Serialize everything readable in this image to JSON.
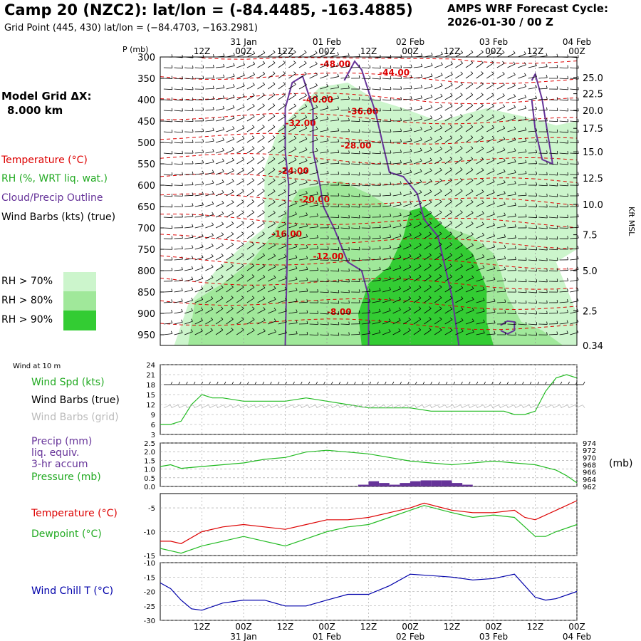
{
  "header": {
    "title": "Camp 20 (NZC2):  lat/lon = (-84.4485, -163.4885)",
    "subtitle": "Grid Point (445, 430) lat/lon = (−84.4703, −163.2981)",
    "cycle_line1": "AMPS WRF Forecast Cycle:",
    "cycle_line2": "2026-01-30 / 00  Z"
  },
  "time_axis": {
    "hour_labels": [
      "12Z",
      "00Z",
      "12Z",
      "00Z",
      "12Z",
      "00Z",
      "12Z",
      "00Z",
      "12Z",
      "00Z"
    ],
    "hour_offsets": [
      12,
      24,
      36,
      48,
      60,
      72,
      84,
      96,
      108,
      120
    ],
    "date_labels": [
      "31 Jan",
      "01 Feb",
      "02 Feb",
      "03 Feb",
      "04 Feb"
    ],
    "date_offsets": [
      24,
      48,
      72,
      96,
      120
    ],
    "range": [
      0,
      120
    ]
  },
  "colors": {
    "temperature": "#dd0000",
    "rh70": "#ccf5cc",
    "rh80": "#a0e89a",
    "rh90": "#33cc33",
    "cloud": "#663399",
    "precip": "#663399",
    "wind": "#000000",
    "wind_grid": "#bbbbbb",
    "speed": "#22bb22",
    "windchill": "#0000aa"
  },
  "legend": {
    "model_grid_label": "Model Grid ΔX:",
    "model_grid_value": "8.000 km",
    "temperature": "Temperature (°C)",
    "rh": "RH (%, WRT liq. wat.)",
    "cloud": "Cloud/Precip Outline",
    "wind": "Wind Barbs (kts) (true)",
    "rh70": "RH > 70%",
    "rh80": "RH > 80%",
    "rh90": "RH > 90%",
    "wind10m": "Wind at 10 m",
    "wind_spd": "Wind Spd (kts)",
    "wind_barbs_true": "Wind Barbs (true)",
    "wind_barbs_grid": "Wind Barbs (grid)",
    "precip_1": "Precip (mm)",
    "precip_2": "liq. equiv.",
    "precip_3": "3-hr accum",
    "pressure": "Pressure (mb)",
    "pressure_unit": "(mb)",
    "temp2": "Temperature (°C)",
    "dewpoint": "Dewpoint (°C)",
    "windchill": "Wind Chill T (°C)"
  },
  "chart_data": [
    {
      "type": "heatmap",
      "title": "Vertical cross-section: Temperature, RH, Cloud/Precip outline, Wind barbs",
      "ylabel": "P (mb)",
      "y2label": "Kft MSL",
      "ylim": [
        300,
        975
      ],
      "pressure_ticks": [
        300,
        350,
        400,
        450,
        500,
        550,
        600,
        650,
        700,
        750,
        800,
        850,
        900,
        950
      ],
      "height_ticks": [
        {
          "label": "25.0",
          "p": 348
        },
        {
          "label": "22.5",
          "p": 386
        },
        {
          "label": "20.0",
          "p": 425
        },
        {
          "label": "17.5",
          "p": 467
        },
        {
          "label": "15.0",
          "p": 522
        },
        {
          "label": "12.5",
          "p": 583
        },
        {
          "label": "10.0",
          "p": 645
        },
        {
          "label": "7.5",
          "p": 716
        },
        {
          "label": "5.0",
          "p": 800
        },
        {
          "label": "2.5",
          "p": 894
        },
        {
          "label": "0.34",
          "p": 975
        }
      ],
      "temperature_contours": [
        {
          "label": "-48.00",
          "t": 46,
          "p": 323
        },
        {
          "label": "-44.00",
          "t": 63,
          "p": 343
        },
        {
          "label": "-40.00",
          "t": 41,
          "p": 407
        },
        {
          "label": "-36.00",
          "t": 54,
          "p": 434
        },
        {
          "label": "-32.00",
          "t": 36,
          "p": 462
        },
        {
          "label": "-28.00",
          "t": 52,
          "p": 514
        },
        {
          "label": "-24.00",
          "t": 34,
          "p": 573
        },
        {
          "label": "-20.00",
          "t": 40,
          "p": 640
        },
        {
          "label": "-16.00",
          "t": 32,
          "p": 721
        },
        {
          "label": "-12.00",
          "t": 44,
          "p": 773
        },
        {
          "label": "-8.00",
          "t": 48,
          "p": 903
        }
      ],
      "rh_regions": [
        {
          "level": 70,
          "poly": [
            [
              4,
              975
            ],
            [
              8,
              880
            ],
            [
              16,
              800
            ],
            [
              24,
              740
            ],
            [
              30,
              700
            ],
            [
              30,
              560
            ],
            [
              34,
              470
            ],
            [
              40,
              420
            ],
            [
              46,
              370
            ],
            [
              54,
              360
            ],
            [
              62,
              400
            ],
            [
              70,
              420
            ],
            [
              80,
              450
            ],
            [
              94,
              420
            ],
            [
              105,
              440
            ],
            [
              114,
              460
            ],
            [
              120,
              450
            ],
            [
              120,
              750
            ],
            [
              114,
              780
            ],
            [
              118,
              860
            ],
            [
              120,
              900
            ],
            [
              120,
              975
            ]
          ]
        },
        {
          "level": 80,
          "poly": [
            [
              8,
              975
            ],
            [
              10,
              870
            ],
            [
              18,
              830
            ],
            [
              26,
              780
            ],
            [
              32,
              720
            ],
            [
              40,
              610
            ],
            [
              46,
              600
            ],
            [
              52,
              590
            ],
            [
              60,
              620
            ],
            [
              66,
              650
            ],
            [
              72,
              660
            ],
            [
              80,
              690
            ],
            [
              90,
              720
            ],
            [
              96,
              760
            ],
            [
              98,
              800
            ],
            [
              100,
              860
            ],
            [
              104,
              920
            ],
            [
              110,
              940
            ],
            [
              116,
              975
            ]
          ]
        },
        {
          "level": 90,
          "poly": [
            [
              58,
              975
            ],
            [
              57,
              900
            ],
            [
              60,
              830
            ],
            [
              66,
              790
            ],
            [
              70,
              720
            ],
            [
              72,
              660
            ],
            [
              76,
              650
            ],
            [
              82,
              700
            ],
            [
              90,
              760
            ],
            [
              94,
              840
            ],
            [
              94,
              920
            ],
            [
              96,
              975
            ]
          ]
        }
      ],
      "cloud_outlines": [
        [
          [
            36,
            975
          ],
          [
            37,
            600
          ],
          [
            36,
            520
          ],
          [
            36,
            420
          ],
          [
            38,
            360
          ],
          [
            41,
            345
          ],
          [
            44,
            420
          ],
          [
            44,
            520
          ],
          [
            46,
            600
          ],
          [
            47,
            650
          ],
          [
            50,
            700
          ],
          [
            54,
            780
          ],
          [
            58,
            800
          ],
          [
            60,
            860
          ],
          [
            60,
            975
          ]
        ],
        [
          [
            53,
            355
          ],
          [
            56,
            310
          ],
          [
            58,
            330
          ],
          [
            60,
            380
          ],
          [
            62,
            430
          ],
          [
            64,
            500
          ],
          [
            66,
            570
          ],
          [
            70,
            580
          ],
          [
            74,
            620
          ],
          [
            76,
            680
          ],
          [
            80,
            720
          ],
          [
            84,
            860
          ],
          [
            86,
            975
          ]
        ],
        [
          [
            107,
            355
          ],
          [
            108,
            340
          ],
          [
            110,
            400
          ],
          [
            112,
            500
          ],
          [
            113,
            550
          ],
          [
            110,
            540
          ],
          [
            108,
            470
          ],
          [
            107,
            400
          ]
        ],
        [
          [
            98,
            928
          ],
          [
            100,
            918
          ],
          [
            102,
            920
          ],
          [
            102,
            940
          ],
          [
            100,
            948
          ],
          [
            98,
            940
          ]
        ]
      ]
    },
    {
      "type": "line",
      "title": "Wind at 10 m",
      "series": [
        {
          "name": "Wind Spd (kts)",
          "unit": "kts",
          "x": [
            0,
            3,
            6,
            9,
            12,
            15,
            18,
            24,
            30,
            36,
            42,
            48,
            54,
            60,
            66,
            72,
            78,
            84,
            90,
            96,
            99,
            102,
            105,
            108,
            111,
            114,
            117,
            120
          ],
          "values": [
            6,
            6,
            7,
            12,
            15,
            14,
            14,
            13,
            13,
            13,
            14,
            13,
            12,
            11,
            11,
            11,
            10,
            10,
            10,
            10,
            10,
            9,
            9,
            10,
            16,
            20,
            21,
            20
          ]
        }
      ],
      "ylim": [
        3,
        24
      ],
      "yticks": [
        3,
        6,
        9,
        12,
        15,
        18,
        21,
        24
      ]
    },
    {
      "type": "bar",
      "title": "Precip (mm) liq. equiv. 3-hr accum",
      "x": [
        57,
        60,
        63,
        66,
        69,
        72,
        75,
        78,
        81,
        84,
        87
      ],
      "values": [
        0.1,
        0.3,
        0.2,
        0.1,
        0.2,
        0.3,
        0.35,
        0.35,
        0.35,
        0.2,
        0.1
      ],
      "ylim": [
        0,
        2.5
      ],
      "yticks": [
        0,
        0.5,
        1,
        1.5,
        2,
        2.5
      ],
      "ytick_labels": [
        "0.0",
        "0.5",
        "1.0",
        "1.5",
        "2.0",
        "2.5"
      ]
    },
    {
      "type": "line",
      "title": "Pressure (mb)",
      "series": [
        {
          "name": "Pressure (mb)",
          "x": [
            0,
            3,
            6,
            12,
            18,
            24,
            30,
            36,
            42,
            48,
            54,
            60,
            66,
            72,
            78,
            84,
            90,
            96,
            102,
            108,
            114,
            117,
            120
          ],
          "values": [
            967.5,
            968,
            967,
            967.5,
            968,
            968.5,
            969.5,
            970,
            971.5,
            972,
            971.5,
            971,
            970,
            969,
            968.5,
            968,
            968.5,
            969,
            968.5,
            968,
            966.5,
            965,
            963
          ]
        }
      ],
      "ylim": [
        962,
        974
      ],
      "yticks": [
        962,
        964,
        966,
        968,
        970,
        972,
        974
      ]
    },
    {
      "type": "line",
      "title": "Temperature / Dewpoint (°C)",
      "series": [
        {
          "name": "Temperature (°C)",
          "x": [
            0,
            3,
            6,
            12,
            18,
            24,
            30,
            36,
            42,
            48,
            54,
            60,
            66,
            72,
            76,
            84,
            90,
            96,
            102,
            105,
            108,
            114,
            120
          ],
          "values": [
            -12,
            -12,
            -12.5,
            -10,
            -9,
            -8.5,
            -9,
            -9.5,
            -8.5,
            -7.5,
            -7.5,
            -7,
            -6,
            -5,
            -4,
            -5.5,
            -6,
            -6,
            -5.5,
            -7,
            -7.5,
            -5.5,
            -3.5
          ]
        },
        {
          "name": "Dewpoint (°C)",
          "x": [
            0,
            3,
            6,
            12,
            18,
            24,
            30,
            36,
            42,
            48,
            54,
            60,
            66,
            72,
            76,
            84,
            90,
            96,
            102,
            105,
            108,
            111,
            114,
            120
          ],
          "values": [
            -13.5,
            -14,
            -14.5,
            -13,
            -12,
            -11,
            -12,
            -13,
            -11.5,
            -10,
            -9,
            -8.5,
            -7,
            -5.5,
            -4.5,
            -6,
            -7,
            -6.5,
            -7,
            -9,
            -11,
            -11,
            -10,
            -8.5
          ]
        }
      ],
      "ylim": [
        -15,
        -2
      ],
      "yticks": [
        -15,
        -10,
        -5
      ],
      "ytick_labels": [
        "-15",
        "-10",
        "-5"
      ]
    },
    {
      "type": "line",
      "title": "Wind Chill T (°C)",
      "series": [
        {
          "name": "Wind Chill T (°C)",
          "x": [
            0,
            3,
            6,
            9,
            12,
            18,
            24,
            30,
            36,
            42,
            48,
            54,
            60,
            66,
            72,
            78,
            84,
            90,
            96,
            102,
            108,
            111,
            114,
            120
          ],
          "values": [
            -17,
            -19,
            -23,
            -26,
            -26.5,
            -24,
            -23,
            -23,
            -25,
            -25,
            -23,
            -21,
            -21,
            -18,
            -14,
            -14.5,
            -15,
            -16,
            -15.5,
            -14,
            -22,
            -23,
            -22.5,
            -20
          ]
        }
      ],
      "ylim": [
        -30,
        -10
      ],
      "yticks": [
        -30,
        -25,
        -20,
        -15,
        -10
      ],
      "ytick_labels": [
        "-30",
        "-25",
        "-20",
        "-15",
        "-10"
      ]
    }
  ]
}
